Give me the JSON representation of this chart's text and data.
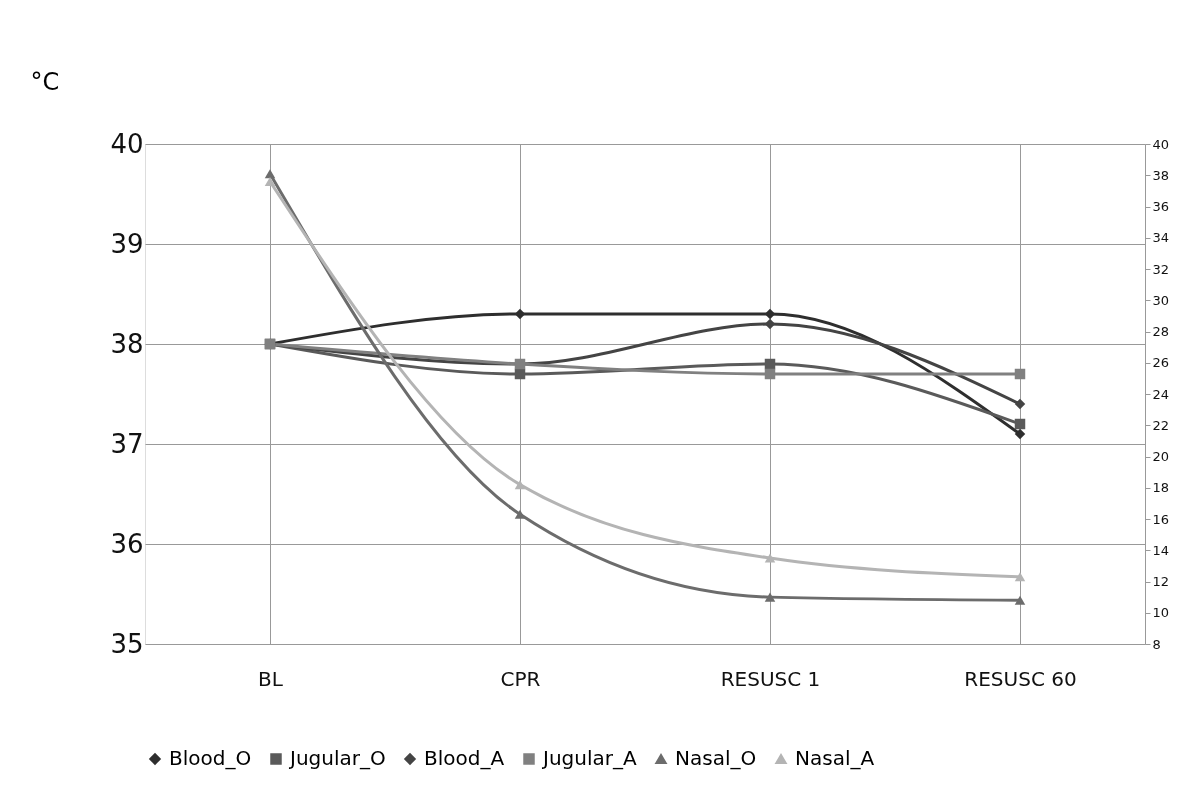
{
  "chart_data": {
    "type": "line",
    "ylabel": "°C",
    "categories": [
      "BL",
      "CPR",
      "RESUSC 1",
      "RESUSC 60"
    ],
    "ylim": [
      35,
      40
    ],
    "yticks": [
      35,
      36,
      37,
      38,
      39,
      40
    ],
    "y2lim": [
      8,
      40
    ],
    "y2ticks": [
      8,
      10,
      12,
      14,
      16,
      18,
      20,
      22,
      24,
      26,
      28,
      30,
      32,
      34,
      36,
      38,
      40
    ],
    "grid": true,
    "legend": "bottom",
    "line_style": "solid",
    "series": [
      {
        "name": "Blood_O",
        "color": "#2e2e2e",
        "marker": "diamond",
        "values": [
          38.0,
          38.3,
          38.3,
          37.1
        ]
      },
      {
        "name": "Jugular_O",
        "color": "#5a5a5a",
        "marker": "square",
        "values": [
          38.0,
          37.7,
          37.8,
          37.2
        ]
      },
      {
        "name": "Blood_A",
        "color": "#444444",
        "marker": "diamond",
        "values": [
          38.0,
          37.8,
          38.2,
          37.4
        ]
      },
      {
        "name": "Jugular_A",
        "color": "#808080",
        "marker": "square",
        "values": [
          38.0,
          37.8,
          37.7,
          37.7
        ]
      },
      {
        "name": "Nasal_O",
        "color": "#6c6c6c",
        "marker": "triangle",
        "axis": "y2",
        "values": [
          38.1,
          16.3,
          11.0,
          10.8
        ]
      },
      {
        "name": "Nasal_A",
        "color": "#b4b4b4",
        "marker": "triangle",
        "axis": "y2",
        "values": [
          37.6,
          18.2,
          13.5,
          12.3
        ]
      }
    ]
  }
}
